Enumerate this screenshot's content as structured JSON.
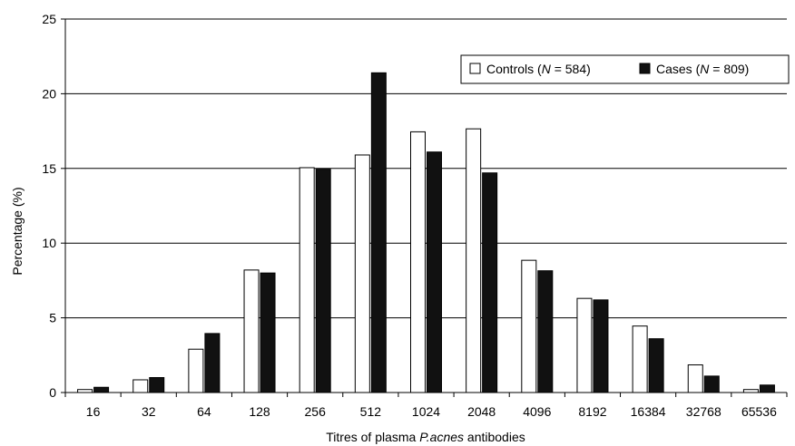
{
  "chart_data": {
    "type": "bar",
    "categories": [
      "16",
      "32",
      "64",
      "128",
      "256",
      "512",
      "1024",
      "2048",
      "4096",
      "8192",
      "16384",
      "32768",
      "65536"
    ],
    "series": [
      {
        "name": "Controls (N = 584)",
        "name_parts": {
          "prefix": "Controls (",
          "var": "N",
          "suffix": " = 584)"
        },
        "color": "#ffffff",
        "values": [
          0.2,
          0.85,
          2.9,
          8.2,
          15.05,
          15.9,
          17.45,
          17.65,
          8.85,
          6.3,
          4.45,
          1.85,
          0.2
        ]
      },
      {
        "name": "Cases (N = 809)",
        "name_parts": {
          "prefix": "Cases (",
          "var": "N",
          "suffix": " = 809)"
        },
        "color": "#111111",
        "values": [
          0.35,
          1.0,
          3.95,
          8.0,
          14.95,
          21.4,
          16.1,
          14.7,
          8.15,
          6.2,
          3.6,
          1.1,
          0.5
        ]
      }
    ],
    "y_ticks": [
      "0",
      "5",
      "10",
      "15",
      "20",
      "25"
    ],
    "ylim": [
      0,
      25
    ],
    "ylabel": "Percentage (%)",
    "xlabel_parts": {
      "prefix": "Titres of plasma ",
      "italic": "P.acnes",
      "suffix": " antibodies"
    },
    "legend_position": "top-right",
    "grid": "horizontal"
  }
}
